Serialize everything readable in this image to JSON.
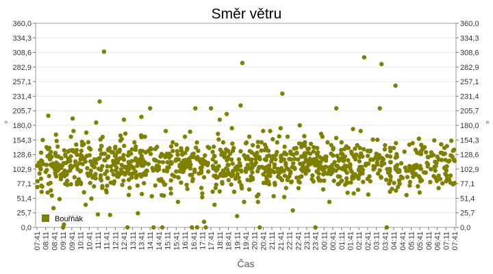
{
  "chart_data": {
    "type": "scatter",
    "title": "Směr větru",
    "xlabel": "Čas",
    "ylabel": "°",
    "ylabel_right": "°",
    "ylim": [
      0,
      360
    ],
    "yticks": [
      "0,0",
      "25,7",
      "51,4",
      "77,1",
      "102,9",
      "128,6",
      "154,3",
      "180,0",
      "205,7",
      "231,4",
      "257,1",
      "282,9",
      "308,6",
      "334,3",
      "360,0"
    ],
    "xticks": [
      "07:41",
      "08:11",
      "08:41",
      "09:11",
      "09:41",
      "10:11",
      "10:41",
      "11:11",
      "11:41",
      "12:11",
      "12:41",
      "13:11",
      "13:41",
      "14:11",
      "14:41",
      "15:11",
      "15:41",
      "16:11",
      "16:41",
      "17:11",
      "17:41",
      "18:11",
      "18:41",
      "19:11",
      "19:41",
      "20:11",
      "20:41",
      "21:11",
      "21:41",
      "22:11",
      "22:41",
      "23:11",
      "23:41",
      "00:11",
      "00:41",
      "01:11",
      "01:41",
      "02:11",
      "02:41",
      "03:11",
      "03:41",
      "04:11",
      "04:41",
      "05:11",
      "05:41",
      "06:11",
      "06:41",
      "07:11",
      "07:41"
    ],
    "grid": true,
    "legend_position": "bottom-left",
    "series": [
      {
        "name": "Bouřňák",
        "color": "#808000",
        "points": [
          [
            0.3,
            95
          ],
          [
            0.4,
            105
          ],
          [
            0.5,
            118
          ],
          [
            0.6,
            72
          ],
          [
            1.0,
            98
          ],
          [
            1.3,
            197
          ],
          [
            1.5,
            120
          ],
          [
            1.6,
            133
          ],
          [
            1.9,
            34
          ],
          [
            2.1,
            110
          ],
          [
            2.2,
            90
          ],
          [
            2.6,
            50
          ],
          [
            2.8,
            122
          ],
          [
            3.0,
            0
          ],
          [
            3.1,
            5
          ],
          [
            3.2,
            100
          ],
          [
            3.5,
            75
          ],
          [
            3.7,
            135
          ],
          [
            3.9,
            160
          ],
          [
            4.1,
            192
          ],
          [
            4.2,
            170
          ],
          [
            4.4,
            110
          ],
          [
            4.6,
            128
          ],
          [
            4.8,
            85
          ],
          [
            5.0,
            120
          ],
          [
            5.2,
            145
          ],
          [
            5.4,
            62
          ],
          [
            5.6,
            40
          ],
          [
            5.8,
            95
          ],
          [
            6.0,
            140
          ],
          [
            6.2,
            100
          ],
          [
            6.4,
            88
          ],
          [
            6.6,
            120
          ],
          [
            6.8,
            185
          ],
          [
            7.0,
            23
          ],
          [
            7.2,
            222
          ],
          [
            7.3,
            155
          ],
          [
            7.5,
            108
          ],
          [
            7.7,
            310
          ],
          [
            7.8,
            130
          ],
          [
            8.0,
            62
          ],
          [
            8.2,
            125
          ],
          [
            8.4,
            22
          ],
          [
            8.6,
            100
          ],
          [
            8.8,
            115
          ],
          [
            9.0,
            142
          ],
          [
            9.2,
            90
          ],
          [
            9.4,
            120
          ],
          [
            9.6,
            162
          ],
          [
            9.8,
            75
          ],
          [
            10.0,
            190
          ],
          [
            10.2,
            105
          ],
          [
            10.4,
            0
          ],
          [
            10.6,
            110
          ],
          [
            10.8,
            130
          ],
          [
            11.0,
            95
          ],
          [
            11.2,
            150
          ],
          [
            11.4,
            88
          ],
          [
            11.6,
            25
          ],
          [
            11.8,
            120
          ],
          [
            12.0,
            195
          ],
          [
            12.2,
            110
          ],
          [
            12.4,
            160
          ],
          [
            12.6,
            100
          ],
          [
            12.8,
            135
          ],
          [
            13.0,
            210
          ],
          [
            13.2,
            55
          ],
          [
            13.4,
            0
          ],
          [
            13.6,
            118
          ],
          [
            13.8,
            142
          ],
          [
            14.0,
            84
          ],
          [
            14.2,
            125
          ],
          [
            14.4,
            0
          ],
          [
            14.6,
            100
          ],
          [
            14.8,
            170
          ],
          [
            15.0,
            115
          ],
          [
            15.2,
            130
          ],
          [
            15.4,
            60
          ],
          [
            15.6,
            150
          ],
          [
            15.8,
            90
          ],
          [
            16.0,
            120
          ],
          [
            16.2,
            45
          ],
          [
            16.4,
            110
          ],
          [
            16.6,
            135
          ],
          [
            16.8,
            98
          ],
          [
            17.0,
            160
          ],
          [
            17.2,
            75
          ],
          [
            17.4,
            120
          ],
          [
            17.6,
            105
          ],
          [
            17.8,
            0
          ],
          [
            18.0,
            130
          ],
          [
            18.2,
            210
          ],
          [
            18.4,
            0
          ],
          [
            18.6,
            95
          ],
          [
            18.8,
            120
          ],
          [
            19.0,
            60
          ],
          [
            19.2,
            10
          ],
          [
            19.4,
            0
          ],
          [
            19.6,
            110
          ],
          [
            19.8,
            140
          ],
          [
            20.0,
            210
          ],
          [
            20.2,
            120
          ],
          [
            20.4,
            40
          ],
          [
            20.6,
            100
          ],
          [
            20.8,
            165
          ],
          [
            21.0,
            190
          ],
          [
            21.2,
            128
          ],
          [
            21.4,
            150
          ],
          [
            21.6,
            95
          ],
          [
            21.8,
            200
          ],
          [
            22.0,
            110
          ],
          [
            22.2,
            130
          ],
          [
            22.4,
            175
          ],
          [
            22.6,
            140
          ],
          [
            22.8,
            105
          ],
          [
            23.0,
            20
          ],
          [
            23.2,
            120
          ],
          [
            23.4,
            215
          ],
          [
            23.6,
            290
          ],
          [
            23.8,
            45
          ],
          [
            24.0,
            100
          ],
          [
            24.2,
            125
          ],
          [
            24.4,
            160
          ],
          [
            24.6,
            90
          ],
          [
            24.8,
            145
          ],
          [
            25.0,
            110
          ],
          [
            25.2,
            130
          ],
          [
            25.4,
            45
          ],
          [
            25.6,
            0
          ],
          [
            25.8,
            150
          ],
          [
            26.0,
            105
          ],
          [
            26.2,
            120
          ],
          [
            26.4,
            85
          ],
          [
            26.6,
            135
          ],
          [
            26.8,
            170
          ],
          [
            27.0,
            100
          ],
          [
            27.2,
            55
          ],
          [
            27.4,
            120
          ],
          [
            27.6,
            150
          ],
          [
            27.8,
            95
          ],
          [
            28.0,
            175
          ],
          [
            28.2,
            236
          ],
          [
            28.4,
            130
          ],
          [
            28.6,
            110
          ],
          [
            28.8,
            160
          ],
          [
            29.0,
            90
          ],
          [
            29.2,
            120
          ],
          [
            29.4,
            30
          ],
          [
            29.6,
            105
          ],
          [
            29.8,
            140
          ],
          [
            30.0,
            120
          ],
          [
            30.2,
            180
          ],
          [
            30.4,
            90
          ],
          [
            30.6,
            125
          ],
          [
            30.8,
            150
          ],
          [
            31.0,
            100
          ],
          [
            31.2,
            110
          ],
          [
            31.4,
            130
          ],
          [
            31.6,
            85
          ],
          [
            31.8,
            120
          ],
          [
            32.0,
            0
          ],
          [
            32.2,
            140
          ],
          [
            32.4,
            95
          ],
          [
            32.6,
            115
          ],
          [
            32.8,
            160
          ],
          [
            33.0,
            105
          ],
          [
            33.2,
            120
          ],
          [
            33.4,
            150
          ],
          [
            33.6,
            45
          ],
          [
            33.8,
            130
          ],
          [
            34.0,
            100
          ],
          [
            34.2,
            115
          ],
          [
            34.4,
            210
          ],
          [
            34.6,
            90
          ],
          [
            34.8,
            120
          ],
          [
            35.0,
            150
          ],
          [
            35.2,
            105
          ],
          [
            35.4,
            125
          ],
          [
            35.6,
            80
          ],
          [
            35.8,
            140
          ],
          [
            36.0,
            110
          ],
          [
            36.2,
            130
          ],
          [
            36.4,
            60
          ],
          [
            36.6,
            120
          ],
          [
            36.8,
            145
          ],
          [
            37.0,
            100
          ],
          [
            37.2,
            170
          ],
          [
            37.4,
            125
          ],
          [
            37.6,
            300
          ],
          [
            37.8,
            110
          ],
          [
            38.0,
            135
          ],
          [
            38.2,
            90
          ],
          [
            38.4,
            120
          ],
          [
            38.6,
            155
          ],
          [
            38.8,
            105
          ],
          [
            39.0,
            130
          ],
          [
            39.2,
            95
          ],
          [
            39.4,
            210
          ],
          [
            39.6,
            288
          ],
          [
            39.8,
            120
          ],
          [
            40.0,
            145
          ],
          [
            40.2,
            0
          ],
          [
            40.4,
            100
          ],
          [
            40.6,
            125
          ],
          [
            40.8,
            68
          ],
          [
            41.0,
            140
          ],
          [
            41.2,
            250
          ],
          [
            41.4,
            110
          ]
        ],
        "band": {
          "center": 110,
          "spread": 22,
          "count": 900
        }
      }
    ]
  }
}
